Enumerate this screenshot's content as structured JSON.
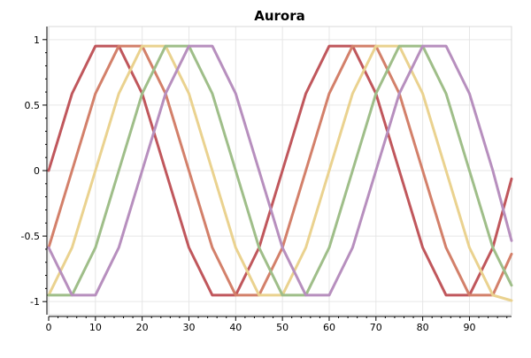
{
  "chart_data": {
    "type": "line",
    "title": "Aurora",
    "xlabel": "",
    "ylabel": "",
    "xlim": [
      0,
      99
    ],
    "ylim": [
      -1.1,
      1.1
    ],
    "grid": true,
    "legend": "none",
    "x_ticks": [
      0,
      10,
      20,
      30,
      40,
      50,
      60,
      70,
      80,
      90
    ],
    "x_tick_labels": [
      "0",
      "10",
      "20",
      "30",
      "40",
      "50",
      "60",
      "70",
      "80",
      "90"
    ],
    "y_ticks": [
      1,
      0.5,
      0,
      -0.5,
      -1
    ],
    "y_tick_labels": [
      "1",
      "0.5",
      "0",
      "-0.5",
      "-1"
    ],
    "x": [
      0,
      5,
      10,
      15,
      20,
      25,
      30,
      35,
      40,
      45,
      50,
      55,
      60,
      65,
      70,
      75,
      80,
      85,
      90,
      95,
      99
    ],
    "series": [
      {
        "color": "#c0575c",
        "values": [
          0,
          0.588,
          0.951,
          0.951,
          0.588,
          0,
          -0.588,
          -0.951,
          -0.951,
          -0.588,
          0,
          0.588,
          0.951,
          0.951,
          0.588,
          0,
          -0.588,
          -0.951,
          -0.951,
          -0.588,
          -0.063
        ]
      },
      {
        "color": "#d3806a",
        "values": [
          -0.588,
          0,
          0.588,
          0.951,
          0.951,
          0.588,
          0,
          -0.588,
          -0.951,
          -0.951,
          -0.588,
          0,
          0.588,
          0.951,
          0.951,
          0.588,
          0,
          -0.588,
          -0.951,
          -0.951,
          -0.637
        ]
      },
      {
        "color": "#ead28f",
        "values": [
          -0.951,
          -0.588,
          0,
          0.588,
          0.951,
          0.951,
          0.588,
          0,
          -0.588,
          -0.951,
          -0.951,
          -0.588,
          0,
          0.588,
          0.951,
          0.951,
          0.588,
          0,
          -0.588,
          -0.951,
          -0.992
        ]
      },
      {
        "color": "#9fbe89",
        "values": [
          -0.951,
          -0.951,
          -0.588,
          0,
          0.588,
          0.951,
          0.951,
          0.588,
          0,
          -0.588,
          -0.951,
          -0.951,
          -0.588,
          0,
          0.588,
          0.951,
          0.951,
          0.588,
          0,
          -0.588,
          -0.876
        ]
      },
      {
        "color": "#b78fbe",
        "values": [
          -0.588,
          -0.951,
          -0.951,
          -0.588,
          0,
          0.588,
          0.951,
          0.951,
          0.588,
          0,
          -0.588,
          -0.951,
          -0.951,
          -0.588,
          0,
          0.588,
          0.951,
          0.951,
          0.588,
          0,
          -0.535
        ]
      }
    ],
    "colors": {
      "background": "#ffffff",
      "axis": "#000000",
      "grid": "#e6e6e6",
      "plot_border": "#d9d9d9"
    }
  }
}
